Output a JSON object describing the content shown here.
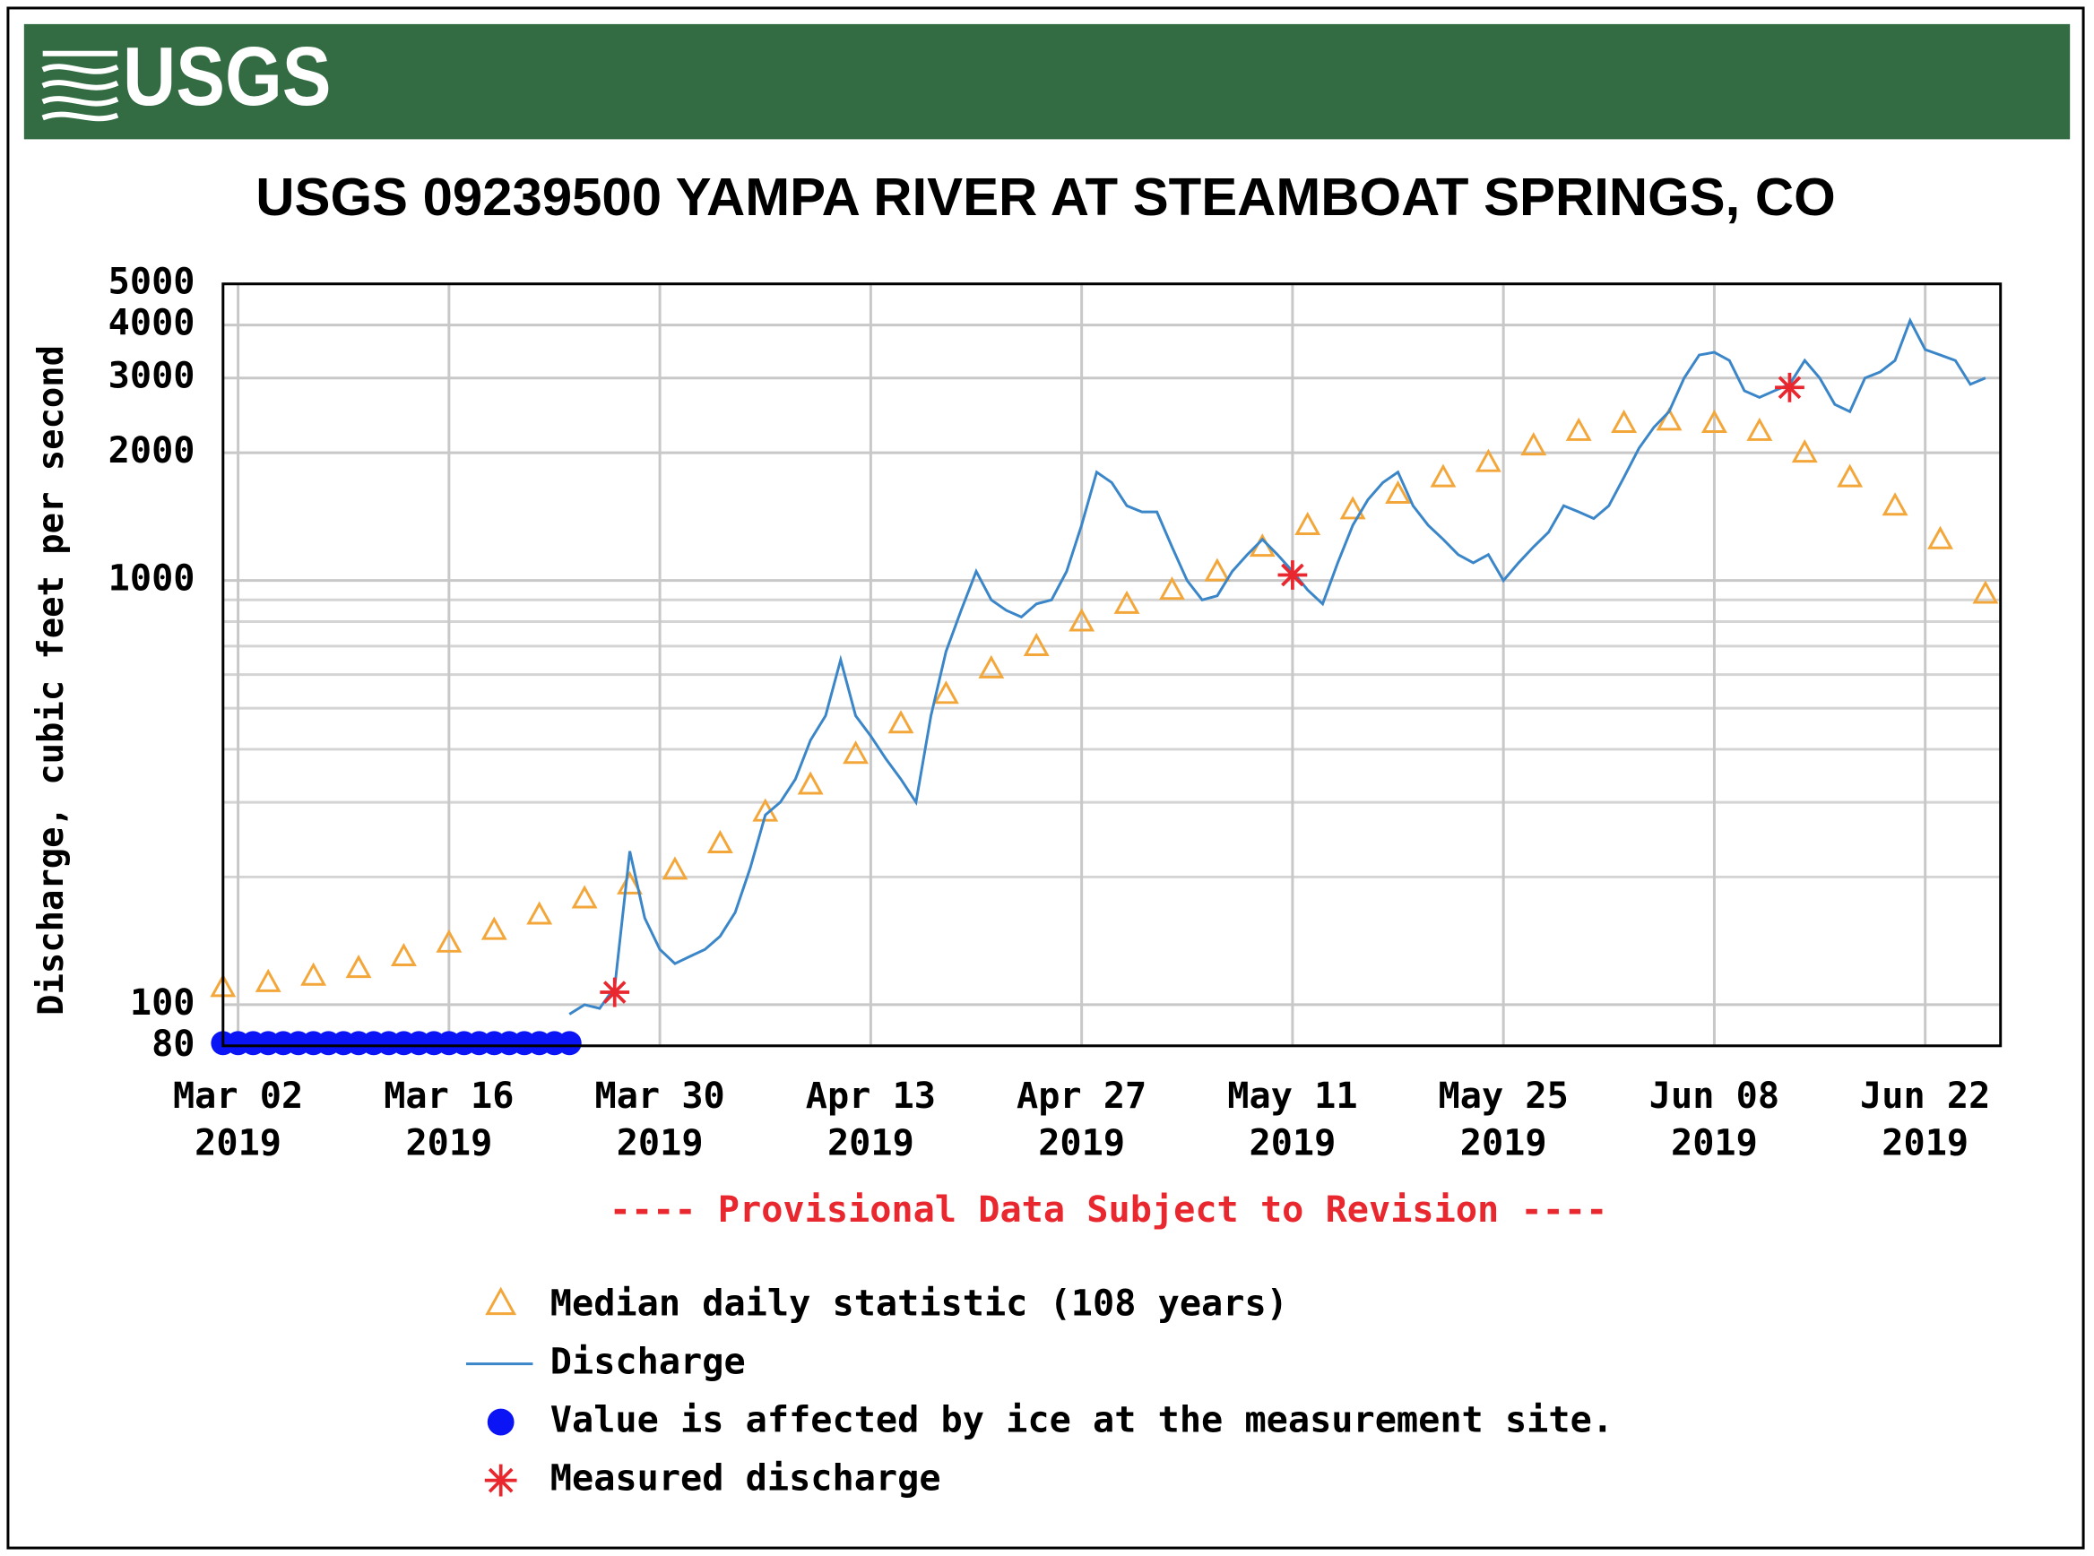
{
  "header": {
    "logo": "USGS"
  },
  "chart_data": {
    "type": "line",
    "title": "USGS 09239500 YAMPA RIVER AT STEAMBOAT SPRINGS, CO",
    "y_label": "Discharge, cubic feet per second",
    "note": "---- Provisional Data Subject to Revision ----",
    "log_y": true,
    "grid": true,
    "xlim": [
      "2019-03-01",
      "2019-06-27"
    ],
    "ylim": [
      80,
      5000
    ],
    "yticks": [
      80,
      100,
      1000,
      2000,
      3000,
      4000,
      5000
    ],
    "y_minor_grid": [
      200,
      300,
      400,
      500,
      600,
      700,
      800,
      900
    ],
    "xticks": [
      {
        "value": "2019-03-02",
        "label": [
          "Mar 02",
          "2019"
        ]
      },
      {
        "value": "2019-03-16",
        "label": [
          "Mar 16",
          "2019"
        ]
      },
      {
        "value": "2019-03-30",
        "label": [
          "Mar 30",
          "2019"
        ]
      },
      {
        "value": "2019-04-13",
        "label": [
          "Apr 13",
          "2019"
        ]
      },
      {
        "value": "2019-04-27",
        "label": [
          "Apr 27",
          "2019"
        ]
      },
      {
        "value": "2019-05-11",
        "label": [
          "May 11",
          "2019"
        ]
      },
      {
        "value": "2019-05-25",
        "label": [
          "May 25",
          "2019"
        ]
      },
      {
        "value": "2019-06-08",
        "label": [
          "Jun 08",
          "2019"
        ]
      },
      {
        "value": "2019-06-22",
        "label": [
          "Jun 22",
          "2019"
        ]
      }
    ],
    "series": [
      {
        "name": "Median daily statistic (108 years)",
        "marker": "triangle",
        "color": "#f3a73b",
        "x": [
          "2019-03-01",
          "2019-03-04",
          "2019-03-07",
          "2019-03-10",
          "2019-03-13",
          "2019-03-16",
          "2019-03-19",
          "2019-03-22",
          "2019-03-25",
          "2019-03-28",
          "2019-03-31",
          "2019-04-03",
          "2019-04-06",
          "2019-04-09",
          "2019-04-12",
          "2019-04-15",
          "2019-04-18",
          "2019-04-21",
          "2019-04-24",
          "2019-04-27",
          "2019-04-30",
          "2019-05-03",
          "2019-05-06",
          "2019-05-09",
          "2019-05-12",
          "2019-05-15",
          "2019-05-18",
          "2019-05-21",
          "2019-05-24",
          "2019-05-27",
          "2019-05-30",
          "2019-06-02",
          "2019-06-05",
          "2019-06-08",
          "2019-06-11",
          "2019-06-14",
          "2019-06-17",
          "2019-06-20",
          "2019-06-23",
          "2019-06-26"
        ],
        "values": [
          110,
          113,
          117,
          122,
          130,
          140,
          150,
          163,
          178,
          192,
          208,
          240,
          285,
          330,
          390,
          460,
          540,
          620,
          700,
          800,
          880,
          950,
          1050,
          1200,
          1350,
          1470,
          1600,
          1750,
          1900,
          2080,
          2250,
          2350,
          2380,
          2350,
          2250,
          2000,
          1750,
          1500,
          1250,
          930
        ]
      },
      {
        "name": "Discharge",
        "marker": "line",
        "color": "#3a86c8",
        "x": [
          "2019-03-24",
          "2019-03-25",
          "2019-03-26",
          "2019-03-27",
          "2019-03-28",
          "2019-03-29",
          "2019-03-30",
          "2019-03-31",
          "2019-04-01",
          "2019-04-02",
          "2019-04-03",
          "2019-04-04",
          "2019-04-05",
          "2019-04-06",
          "2019-04-07",
          "2019-04-08",
          "2019-04-09",
          "2019-04-10",
          "2019-04-11",
          "2019-04-12",
          "2019-04-13",
          "2019-04-14",
          "2019-04-15",
          "2019-04-16",
          "2019-04-17",
          "2019-04-18",
          "2019-04-19",
          "2019-04-20",
          "2019-04-21",
          "2019-04-22",
          "2019-04-23",
          "2019-04-24",
          "2019-04-25",
          "2019-04-26",
          "2019-04-27",
          "2019-04-28",
          "2019-04-29",
          "2019-04-30",
          "2019-05-01",
          "2019-05-02",
          "2019-05-03",
          "2019-05-04",
          "2019-05-05",
          "2019-05-06",
          "2019-05-07",
          "2019-05-08",
          "2019-05-09",
          "2019-05-10",
          "2019-05-11",
          "2019-05-12",
          "2019-05-13",
          "2019-05-14",
          "2019-05-15",
          "2019-05-16",
          "2019-05-17",
          "2019-05-18",
          "2019-05-19",
          "2019-05-20",
          "2019-05-21",
          "2019-05-22",
          "2019-05-23",
          "2019-05-24",
          "2019-05-25",
          "2019-05-26",
          "2019-05-27",
          "2019-05-28",
          "2019-05-29",
          "2019-05-30",
          "2019-05-31",
          "2019-06-01",
          "2019-06-02",
          "2019-06-03",
          "2019-06-04",
          "2019-06-05",
          "2019-06-06",
          "2019-06-07",
          "2019-06-08",
          "2019-06-09",
          "2019-06-10",
          "2019-06-11",
          "2019-06-12",
          "2019-06-13",
          "2019-06-14",
          "2019-06-15",
          "2019-06-16",
          "2019-06-17",
          "2019-06-18",
          "2019-06-19",
          "2019-06-20",
          "2019-06-21",
          "2019-06-22",
          "2019-06-23",
          "2019-06-24",
          "2019-06-25",
          "2019-06-26"
        ],
        "values": [
          95,
          100,
          98,
          110,
          230,
          160,
          135,
          125,
          130,
          135,
          145,
          165,
          210,
          280,
          300,
          340,
          420,
          480,
          650,
          480,
          430,
          380,
          340,
          300,
          480,
          680,
          850,
          1050,
          900,
          850,
          820,
          880,
          900,
          1050,
          1350,
          1800,
          1700,
          1500,
          1450,
          1450,
          1200,
          1000,
          900,
          920,
          1050,
          1150,
          1250,
          1150,
          1050,
          950,
          880,
          1100,
          1350,
          1550,
          1700,
          1800,
          1500,
          1350,
          1250,
          1150,
          1100,
          1150,
          1000,
          1100,
          1200,
          1300,
          1500,
          1450,
          1400,
          1500,
          1750,
          2050,
          2300,
          2500,
          3000,
          3400,
          3450,
          3300,
          2800,
          2700,
          2800,
          2900,
          3300,
          3000,
          2600,
          2500,
          3000,
          3100,
          3300,
          4100,
          3500,
          3400,
          3300,
          2900,
          3000
        ]
      },
      {
        "name": "Value is affected by ice at the measurement site.",
        "marker": "circle",
        "color": "#0a14f5",
        "x": [
          "2019-03-01",
          "2019-03-02",
          "2019-03-03",
          "2019-03-04",
          "2019-03-05",
          "2019-03-06",
          "2019-03-07",
          "2019-03-08",
          "2019-03-09",
          "2019-03-10",
          "2019-03-11",
          "2019-03-12",
          "2019-03-13",
          "2019-03-14",
          "2019-03-15",
          "2019-03-16",
          "2019-03-17",
          "2019-03-18",
          "2019-03-19",
          "2019-03-20",
          "2019-03-21",
          "2019-03-22",
          "2019-03-23",
          "2019-03-24"
        ],
        "values": [
          80,
          80,
          80,
          80,
          80,
          80,
          80,
          80,
          80,
          80,
          80,
          80,
          80,
          80,
          80,
          80,
          80,
          80,
          80,
          80,
          80,
          80,
          80,
          80
        ]
      },
      {
        "name": "Measured discharge",
        "marker": "asterisk",
        "color": "#e8282e",
        "x": [
          "2019-03-27",
          "2019-05-11",
          "2019-06-13"
        ],
        "values": [
          107,
          1030,
          2850
        ]
      }
    ]
  }
}
